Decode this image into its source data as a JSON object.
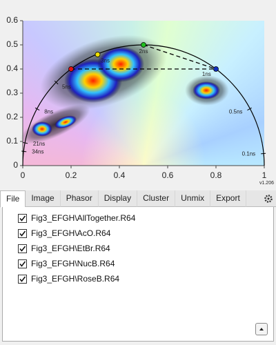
{
  "chart_data": {
    "type": "scatter",
    "xlim": [
      0,
      1
    ],
    "ylim": [
      0,
      0.6
    ],
    "xticks": [
      0,
      0.2,
      0.4,
      0.6,
      0.8,
      1
    ],
    "yticks": [
      0,
      0.1,
      0.2,
      0.3,
      0.4,
      0.5,
      0.6
    ],
    "x": [
      0.2,
      0.31,
      0.5,
      0.8
    ],
    "values": [
      0.4,
      0.46,
      0.5,
      0.4
    ],
    "colors": [
      "#e01010",
      "#f0e000",
      "#20c020",
      "#1030c0"
    ],
    "lifetime_labels": [
      {
        "label": "0.1ns",
        "x": 0.9975,
        "y": 0.05
      },
      {
        "label": "0.5ns",
        "x": 0.94,
        "y": 0.235
      },
      {
        "label": "1ns",
        "x": 0.8,
        "y": 0.4
      },
      {
        "label": "2ns",
        "x": 0.5,
        "y": 0.5
      },
      {
        "label": "3ns",
        "x": 0.31,
        "y": 0.46
      },
      {
        "label": "5ns",
        "x": 0.138,
        "y": 0.345
      },
      {
        "label": "8ns",
        "x": 0.059,
        "y": 0.235
      },
      {
        "label": "21ns",
        "x": 0.009,
        "y": 0.094
      },
      {
        "label": "34ns",
        "x": 0.0035,
        "y": 0.059
      }
    ],
    "version": "v1.206"
  },
  "tabs": [
    "File",
    "Image",
    "Phasor",
    "Display",
    "Cluster",
    "Unmix",
    "Export"
  ],
  "active_tab_index": 0,
  "files": [
    {
      "label": "Fig3_EFGH\\AllTogether.R64",
      "checked": true
    },
    {
      "label": "Fig3_EFGH\\AcO.R64",
      "checked": true
    },
    {
      "label": "Fig3_EFGH\\EtBr.R64",
      "checked": true
    },
    {
      "label": "Fig3_EFGH\\NucB.R64",
      "checked": true
    },
    {
      "label": "Fig3_EFGH\\RoseB.R64",
      "checked": true
    }
  ]
}
